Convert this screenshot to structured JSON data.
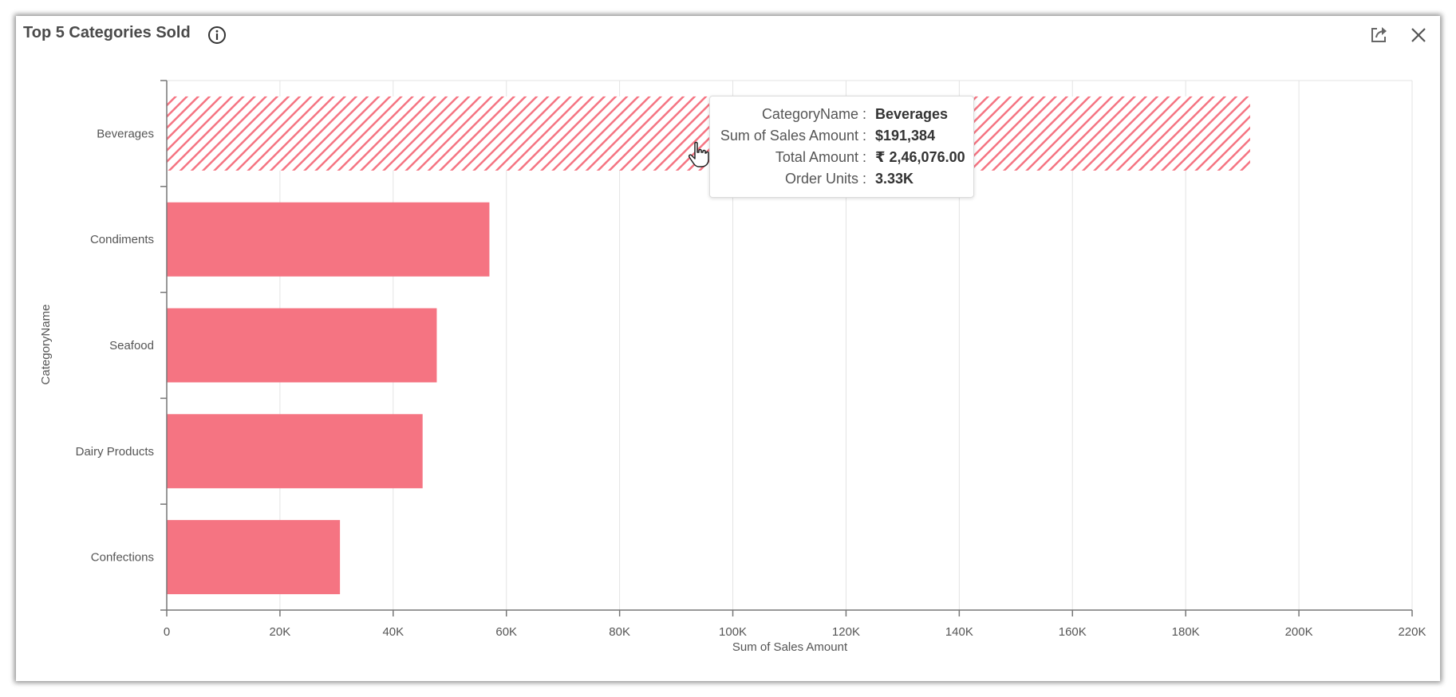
{
  "header": {
    "title": "Top 5 Categories Sold"
  },
  "icons": {
    "info": "info-icon",
    "export": "export-icon",
    "close": "close-icon"
  },
  "colors": {
    "bar": "#f57482",
    "hatch": "#f57482"
  },
  "tooltip": {
    "rows": [
      {
        "label": "CategoryName :",
        "value": "Beverages"
      },
      {
        "label": "Sum of Sales Amount :",
        "value": "$191,384"
      },
      {
        "label": "Total Amount :",
        "value": "₹ 2,46,076.00"
      },
      {
        "label": "Order Units :",
        "value": "3.33K"
      }
    ]
  },
  "chart_data": {
    "type": "bar",
    "orientation": "horizontal",
    "categories": [
      "Beverages",
      "Condiments",
      "Seafood",
      "Dairy Products",
      "Confections"
    ],
    "values": [
      191384,
      57000,
      47700,
      45200,
      30600
    ],
    "highlighted": "Beverages",
    "xlabel": "Sum of Sales Amount",
    "ylabel": "CategoryName",
    "xlim": [
      0,
      220000
    ],
    "xticks": [
      0,
      20000,
      40000,
      60000,
      80000,
      100000,
      120000,
      140000,
      160000,
      180000,
      200000,
      220000
    ],
    "xtick_labels": [
      "0",
      "20K",
      "40K",
      "60K",
      "80K",
      "100K",
      "120K",
      "140K",
      "160K",
      "180K",
      "200K",
      "220K"
    ],
    "grid": true
  }
}
